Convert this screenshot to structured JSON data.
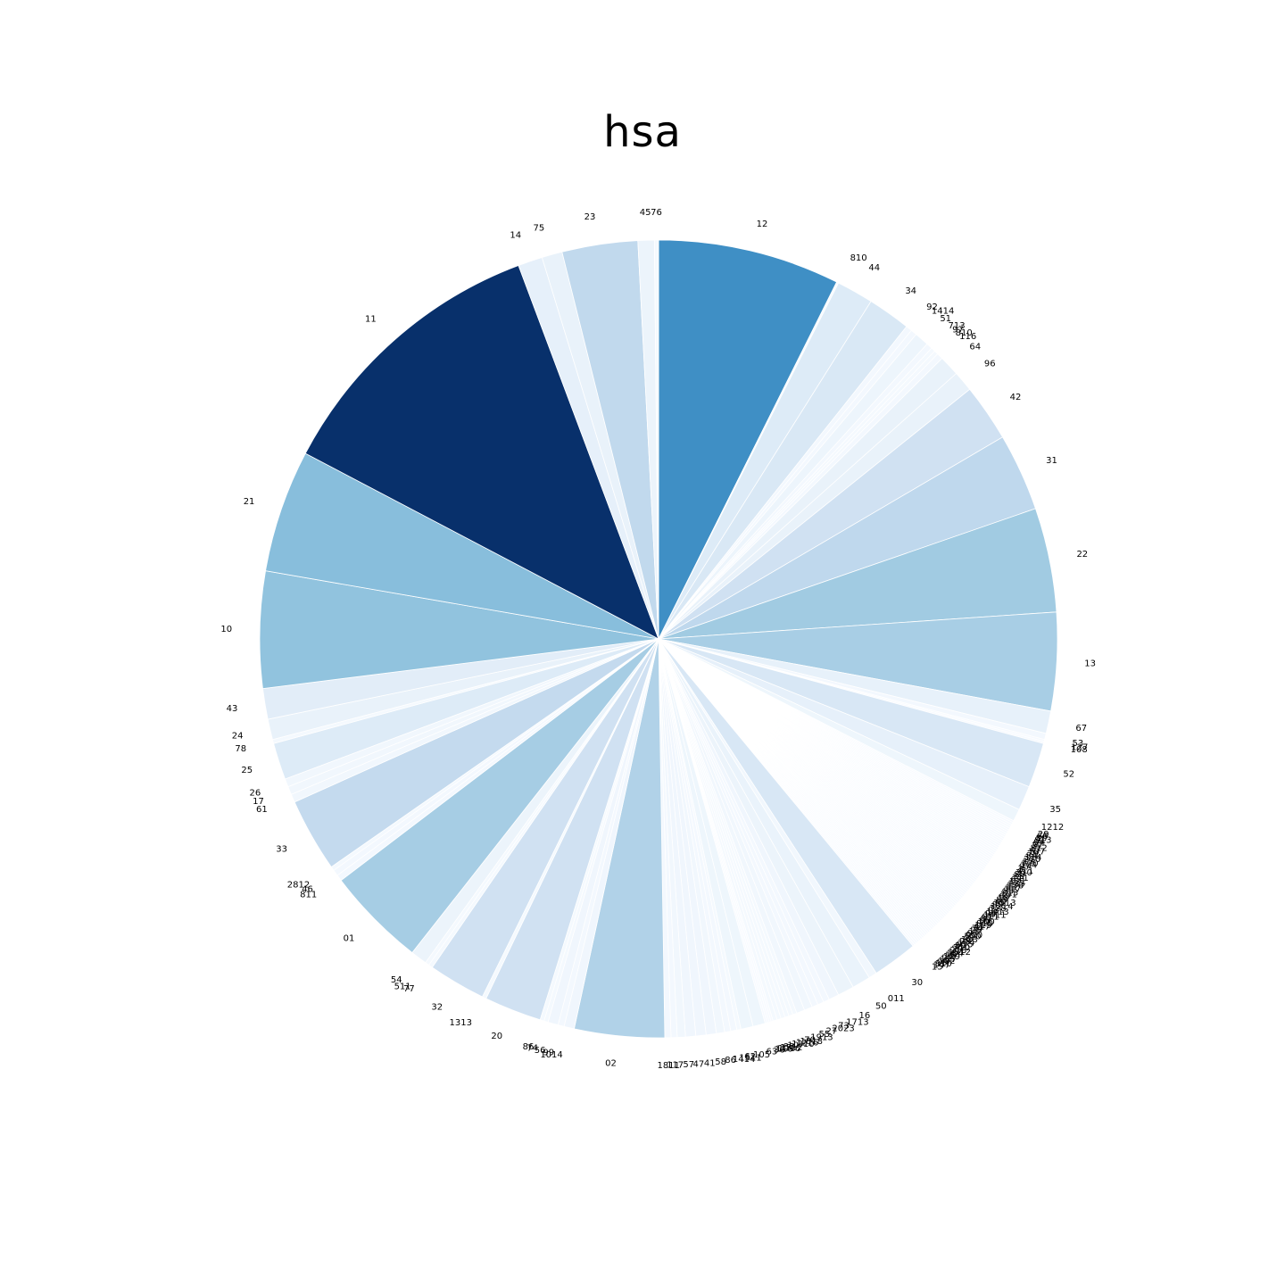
{
  "chart_data": {
    "type": "pie",
    "title": "hsa",
    "colormap": "Blues",
    "start": "12 o'clock",
    "direction": "clockwise",
    "wedges": [
      {
        "label": "12",
        "value": 89
      },
      {
        "label": "810",
        "value": 1
      },
      {
        "label": "44",
        "value": 18
      },
      {
        "label": "34",
        "value": 21
      },
      {
        "label": "92",
        "value": 3
      },
      {
        "label": "1414",
        "value": 3
      },
      {
        "label": "51",
        "value": 7
      },
      {
        "label": "713",
        "value": 3
      },
      {
        "label": "97",
        "value": 2
      },
      {
        "label": "810",
        "value": 2
      },
      {
        "label": "116",
        "value": 3
      },
      {
        "label": "64",
        "value": 10
      },
      {
        "label": "96",
        "value": 10
      },
      {
        "label": "42",
        "value": 28
      },
      {
        "label": "31",
        "value": 38
      },
      {
        "label": "22",
        "value": 51
      },
      {
        "label": "13",
        "value": 48
      },
      {
        "label": "67",
        "value": 11
      },
      {
        "label": "53",
        "value": 3
      },
      {
        "label": "127",
        "value": 1
      },
      {
        "label": "108",
        "value": 1
      },
      {
        "label": "52",
        "value": 22
      },
      {
        "label": "35",
        "value": 12
      },
      {
        "label": "1212",
        "value": 6
      },
      {
        "label": "29",
        "value": 1
      },
      {
        "label": "66",
        "value": 1
      },
      {
        "label": "80",
        "value": 1
      },
      {
        "label": "913",
        "value": 1
      },
      {
        "label": "94",
        "value": 1
      },
      {
        "label": "07",
        "value": 1
      },
      {
        "label": "37",
        "value": 1
      },
      {
        "label": "812",
        "value": 1
      },
      {
        "label": "47",
        "value": 1
      },
      {
        "label": "107",
        "value": 1
      },
      {
        "label": "79",
        "value": 1
      },
      {
        "label": "84",
        "value": 1
      },
      {
        "label": "114",
        "value": 1
      },
      {
        "label": "210",
        "value": 1
      },
      {
        "label": "15",
        "value": 1
      },
      {
        "label": "120",
        "value": 1
      },
      {
        "label": "104",
        "value": 1
      },
      {
        "label": "97",
        "value": 1
      },
      {
        "label": "3",
        "value": 1
      },
      {
        "label": "411",
        "value": 1
      },
      {
        "label": "310",
        "value": 1
      },
      {
        "label": "80",
        "value": 1
      },
      {
        "label": "33",
        "value": 1
      },
      {
        "label": "111",
        "value": 1
      },
      {
        "label": "68",
        "value": 1
      },
      {
        "label": "121",
        "value": 1
      },
      {
        "label": "133",
        "value": 1
      },
      {
        "label": "156",
        "value": 1
      },
      {
        "label": "13",
        "value": 1
      },
      {
        "label": "117",
        "value": 1
      },
      {
        "label": "85",
        "value": 1
      },
      {
        "label": "213",
        "value": 1
      },
      {
        "label": "101",
        "value": 1
      },
      {
        "label": "60",
        "value": 1
      },
      {
        "label": "18",
        "value": 1
      },
      {
        "label": "88",
        "value": 1
      },
      {
        "label": "40",
        "value": 1
      },
      {
        "label": "1513",
        "value": 1
      },
      {
        "label": "89",
        "value": 1
      },
      {
        "label": "1214",
        "value": 1
      },
      {
        "label": "128",
        "value": 1
      },
      {
        "label": "03",
        "value": 1
      },
      {
        "label": "1413",
        "value": 1
      },
      {
        "label": "94",
        "value": 1
      },
      {
        "label": "1411",
        "value": 1
      },
      {
        "label": "911",
        "value": 1
      },
      {
        "label": "87",
        "value": 1
      },
      {
        "label": "06",
        "value": 1
      },
      {
        "label": "100",
        "value": 1
      },
      {
        "label": "810",
        "value": 1
      },
      {
        "label": "119",
        "value": 1
      },
      {
        "label": "417",
        "value": 1
      },
      {
        "label": "74",
        "value": 1
      },
      {
        "label": "26",
        "value": 1
      },
      {
        "label": "10",
        "value": 1
      },
      {
        "label": "97",
        "value": 1
      },
      {
        "label": "910",
        "value": 1
      },
      {
        "label": "510",
        "value": 1
      },
      {
        "label": "48",
        "value": 1
      },
      {
        "label": "123",
        "value": 1
      },
      {
        "label": "28",
        "value": 1
      },
      {
        "label": "124",
        "value": 1
      },
      {
        "label": "915",
        "value": 1
      },
      {
        "label": "89",
        "value": 1
      },
      {
        "label": "710",
        "value": 1
      },
      {
        "label": "29",
        "value": 1
      },
      {
        "label": "213",
        "value": 1
      },
      {
        "label": "1812",
        "value": 1
      },
      {
        "label": "104",
        "value": 1
      },
      {
        "label": "18",
        "value": 1
      },
      {
        "label": "129",
        "value": 1
      },
      {
        "label": "22",
        "value": 1
      },
      {
        "label": "127",
        "value": 1
      },
      {
        "label": "102",
        "value": 1
      },
      {
        "label": "99",
        "value": 1
      },
      {
        "label": "810",
        "value": 1
      },
      {
        "label": "147",
        "value": 1
      },
      {
        "label": "15",
        "value": 1
      },
      {
        "label": "30",
        "value": 22
      },
      {
        "label": "011",
        "value": 4
      },
      {
        "label": "50",
        "value": 9
      },
      {
        "label": "16",
        "value": 8
      },
      {
        "label": "1713",
        "value": 5
      },
      {
        "label": "73",
        "value": 3
      },
      {
        "label": "2023",
        "value": 3
      },
      {
        "label": "27",
        "value": 3
      },
      {
        "label": "55",
        "value": 4
      },
      {
        "label": "1913",
        "value": 4
      },
      {
        "label": "70",
        "value": 2
      },
      {
        "label": "1818",
        "value": 2
      },
      {
        "label": "1216",
        "value": 2
      },
      {
        "label": "1310",
        "value": 2
      },
      {
        "label": "10",
        "value": 2
      },
      {
        "label": "88",
        "value": 2
      },
      {
        "label": "1312",
        "value": 1
      },
      {
        "label": "1016",
        "value": 1
      },
      {
        "label": "116",
        "value": 1
      },
      {
        "label": "36",
        "value": 1
      },
      {
        "label": "63",
        "value": 6
      },
      {
        "label": "105",
        "value": 6
      },
      {
        "label": "62",
        "value": 2
      },
      {
        "label": "1511",
        "value": 3
      },
      {
        "label": "1414",
        "value": 3
      },
      {
        "label": "86",
        "value": 4
      },
      {
        "label": "58",
        "value": 5
      },
      {
        "label": "41",
        "value": 5
      },
      {
        "label": "47",
        "value": 5
      },
      {
        "label": "57",
        "value": 4
      },
      {
        "label": "117",
        "value": 3
      },
      {
        "label": "1811",
        "value": 3
      },
      {
        "label": "02",
        "value": 44
      },
      {
        "label": "1014",
        "value": 5
      },
      {
        "label": "99",
        "value": 3
      },
      {
        "label": "56",
        "value": 5
      },
      {
        "label": "74",
        "value": 2
      },
      {
        "label": "86",
        "value": 2
      },
      {
        "label": "20",
        "value": 28
      },
      {
        "label": "1313",
        "value": 2
      },
      {
        "label": "32",
        "value": 28
      },
      {
        "label": "77",
        "value": 2
      },
      {
        "label": "511",
        "value": 2
      },
      {
        "label": "54",
        "value": 8
      },
      {
        "label": "01",
        "value": 49
      },
      {
        "label": "811",
        "value": 3
      },
      {
        "label": "46",
        "value": 3
      },
      {
        "label": "2812",
        "value": 2
      },
      {
        "label": "33",
        "value": 36
      },
      {
        "label": "61",
        "value": 4
      },
      {
        "label": "17",
        "value": 4
      },
      {
        "label": "26",
        "value": 4
      },
      {
        "label": "25",
        "value": 18
      },
      {
        "label": "78",
        "value": 2
      },
      {
        "label": "24",
        "value": 10
      },
      {
        "label": "43",
        "value": 15
      },
      {
        "label": "10",
        "value": 57
      },
      {
        "label": "21",
        "value": 60
      },
      {
        "label": "11",
        "value": 140
      },
      {
        "label": "14",
        "value": 12
      },
      {
        "label": "75",
        "value": 10
      },
      {
        "label": "23",
        "value": 37
      },
      {
        "label": "45",
        "value": 8
      },
      {
        "label": "76",
        "value": 2
      }
    ]
  }
}
